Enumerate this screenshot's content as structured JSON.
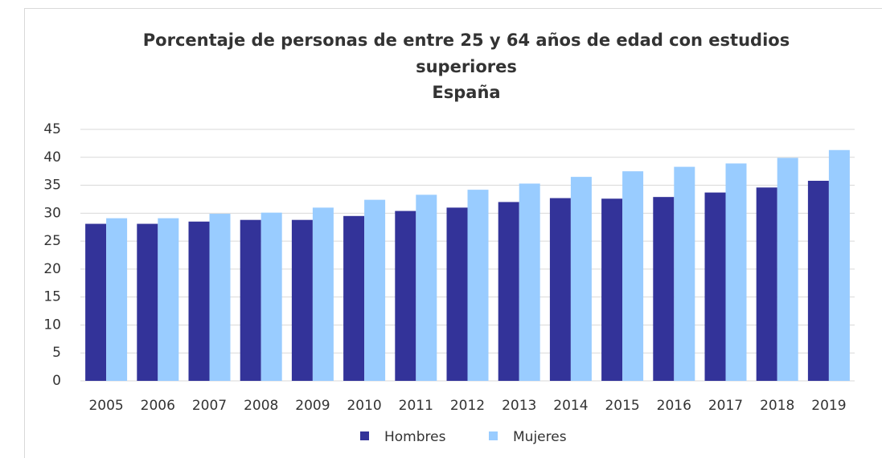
{
  "chart_data": {
    "type": "bar",
    "title": "Porcentaje de personas de entre 25 y 64 años de edad con estudios superiores",
    "subtitle": "España",
    "categories": [
      "2005",
      "2006",
      "2007",
      "2008",
      "2009",
      "2010",
      "2011",
      "2012",
      "2013",
      "2014",
      "2015",
      "2016",
      "2017",
      "2018",
      "2019"
    ],
    "series": [
      {
        "name": "Hombres",
        "color": "#333399",
        "values": [
          28.1,
          28.1,
          28.5,
          28.8,
          28.8,
          29.5,
          30.4,
          31.0,
          32.0,
          32.7,
          32.6,
          32.9,
          33.7,
          34.6,
          35.8
        ]
      },
      {
        "name": "Mujeres",
        "color": "#99ccff",
        "values": [
          29.1,
          29.1,
          29.9,
          30.1,
          31.0,
          32.4,
          33.3,
          34.2,
          35.3,
          36.5,
          37.5,
          38.3,
          38.9,
          39.9,
          41.3
        ]
      }
    ],
    "ylim": [
      0,
      45
    ],
    "yticks": [
      0,
      5,
      10,
      15,
      20,
      25,
      30,
      35,
      40,
      45
    ],
    "grid": true,
    "legend": "bottom"
  }
}
